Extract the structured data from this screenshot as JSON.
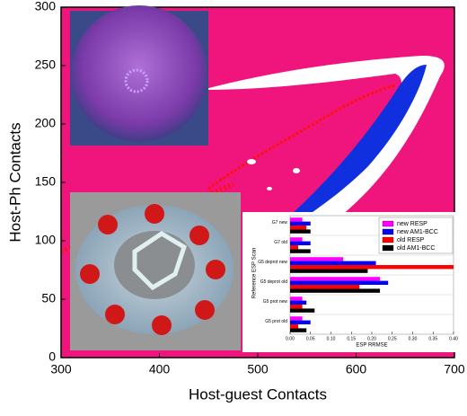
{
  "chart_data": [
    {
      "type": "density",
      "xlabel": "Host-guest Contacts",
      "ylabel": "Host-Ph Contacts",
      "xlim": [
        300,
        700
      ],
      "xticks": [
        300,
        400,
        500,
        600,
        700
      ],
      "ylim": [
        0,
        300
      ],
      "yticks": [
        0,
        50,
        100,
        150,
        200,
        250,
        300
      ]
    },
    {
      "type": "hbar",
      "xlabel": "ESP RRMSE",
      "ylabel": "Reference ESP Scan",
      "categories": [
        "G7 new",
        "G7 old",
        "G5 deprot new",
        "G5 deprot old",
        "G5 prot new",
        "G5 prot old"
      ],
      "series": [
        {
          "name": "new RESP",
          "color": "#ff00ff",
          "values": [
            0.03,
            0.03,
            0.13,
            0.22,
            0.03,
            0.03
          ]
        },
        {
          "name": "new AM1-BCC",
          "color": "#0000ff",
          "values": [
            0.05,
            0.05,
            0.21,
            0.24,
            0.04,
            0.05
          ]
        },
        {
          "name": "old RESP",
          "color": "#ff0000",
          "values": [
            0.04,
            0.02,
            0.4,
            0.17,
            0.03,
            0.02
          ]
        },
        {
          "name": "old AM1-BCC",
          "color": "#000000",
          "values": [
            0.05,
            0.05,
            0.19,
            0.22,
            0.06,
            0.04
          ]
        }
      ],
      "xlim": [
        0,
        0.4
      ],
      "xticks": [
        {
          "value": 0,
          "label": "0.00"
        },
        0.05,
        {
          "value": 0.1,
          "label": "0.10"
        },
        0.15,
        {
          "value": 0.2,
          "label": "0.20"
        },
        0.25,
        {
          "value": 0.3,
          "label": "0.30"
        },
        0.35,
        {
          "value": 0.4,
          "label": "0.40"
        }
      ]
    }
  ]
}
